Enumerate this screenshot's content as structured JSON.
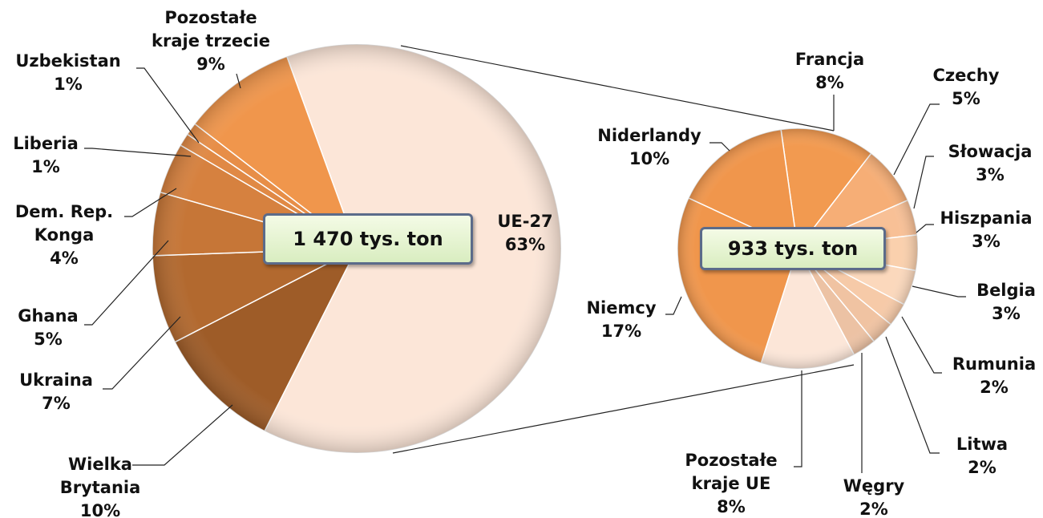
{
  "chart_data": [
    {
      "type": "pie",
      "center_label": "1 470 tys. ton",
      "categories": [
        "UE-27",
        "Wielka Brytania",
        "Ukraina",
        "Ghana",
        "Dem. Rep. Konga",
        "Liberia",
        "Uzbekistan",
        "Pozostałe kraje trzecie"
      ],
      "values": [
        63,
        10,
        7,
        5,
        4,
        1,
        1,
        9
      ],
      "value_labels": [
        "63%",
        "10%",
        "7%",
        "5%",
        "4%",
        "1%",
        "1%",
        "9%"
      ],
      "colors": [
        "#fce6d8",
        "#9e5c28",
        "#b2692f",
        "#c67637",
        "#d6813f",
        "#e08945",
        "#e78e48",
        "#f0964c"
      ]
    },
    {
      "type": "pie",
      "center_label": "933 tys. ton",
      "categories": [
        "Francja",
        "Czechy",
        "Słowacja",
        "Hiszpania",
        "Belgia",
        "Rumunia",
        "Litwa",
        "Węgry",
        "Pozostałe kraje UE",
        "Niemcy",
        "Niderlandy"
      ],
      "values": [
        8,
        5,
        3,
        3,
        3,
        2,
        2,
        2,
        8,
        17,
        10
      ],
      "value_labels": [
        "8%",
        "5%",
        "3%",
        "3%",
        "3%",
        "2%",
        "2%",
        "2%",
        "8%",
        "17%",
        "10%"
      ],
      "colors": [
        "#f29a50",
        "#f6ae76",
        "#f8c096",
        "#fad0ad",
        "#fbd8bc",
        "#f6caa8",
        "#f0c3a2",
        "#ecc2a4",
        "#fce6d8",
        "#f0964c",
        "#f0964c"
      ]
    }
  ]
}
